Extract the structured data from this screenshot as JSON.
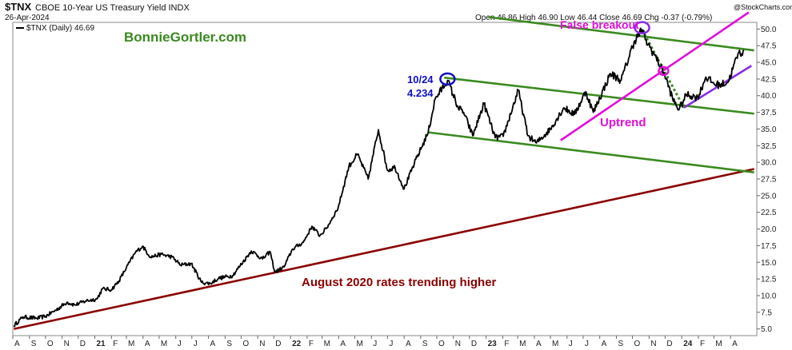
{
  "header": {
    "symbol": "$TNX",
    "name": "CBOE 10-Year US Treasury Yield INDX",
    "date": "26-Apr-2024",
    "legend": "$TNX (Daily) 46.69",
    "credit": "@StockCharts.com",
    "ohlc": "Open 46.86  High 46.90  Low 46.44  Close 46.69  Chg -0.37 (-0.79%)"
  },
  "annotations": {
    "brand": "BonnieGortler.com",
    "false_breakout": "False breakout",
    "peak_date": "10/24",
    "peak_value": "4.234",
    "uptrend": "Uptrend",
    "long_trend": "August 2020 rates trending higher"
  },
  "colors": {
    "price": "#000000",
    "green_channel": "#3a8a1f",
    "magenta": "#e010d8",
    "purple": "#8a2be2",
    "dark_red": "#8b0000",
    "blue": "#1010c0",
    "brand": "#3a8a1f"
  },
  "chart_data": {
    "type": "line",
    "title": "$TNX CBOE 10-Year US Treasury Yield INDX",
    "series": [
      {
        "name": "$TNX (Daily)",
        "points": [
          [
            "2020-08-03",
            5.5
          ],
          [
            "2020-08-20",
            6.8
          ],
          [
            "2020-09-15",
            6.6
          ],
          [
            "2020-10-01",
            6.9
          ],
          [
            "2020-10-20",
            7.8
          ],
          [
            "2020-11-10",
            9.0
          ],
          [
            "2020-11-25",
            8.6
          ],
          [
            "2020-12-15",
            9.2
          ],
          [
            "2021-01-05",
            9.5
          ],
          [
            "2021-01-15",
            11.0
          ],
          [
            "2021-02-01",
            10.9
          ],
          [
            "2021-02-15",
            12.2
          ],
          [
            "2021-03-01",
            14.2
          ],
          [
            "2021-03-18",
            16.5
          ],
          [
            "2021-03-31",
            17.4
          ],
          [
            "2021-04-15",
            15.8
          ],
          [
            "2021-05-05",
            16.2
          ],
          [
            "2021-05-25",
            15.8
          ],
          [
            "2021-06-10",
            14.6
          ],
          [
            "2021-06-30",
            14.8
          ],
          [
            "2021-07-19",
            12.0
          ],
          [
            "2021-08-04",
            11.8
          ],
          [
            "2021-08-20",
            12.6
          ],
          [
            "2021-09-15",
            13.0
          ],
          [
            "2021-10-20",
            16.7
          ],
          [
            "2021-11-10",
            15.5
          ],
          [
            "2021-11-24",
            16.6
          ],
          [
            "2021-12-03",
            13.5
          ],
          [
            "2021-12-20",
            14.3
          ],
          [
            "2022-01-05",
            17.0
          ],
          [
            "2022-01-25",
            18.0
          ],
          [
            "2022-02-10",
            20.4
          ],
          [
            "2022-02-25",
            19.0
          ],
          [
            "2022-03-10",
            20.2
          ],
          [
            "2022-03-31",
            23.2
          ],
          [
            "2022-04-20",
            29.4
          ],
          [
            "2022-05-06",
            31.2
          ],
          [
            "2022-05-26",
            27.5
          ],
          [
            "2022-06-14",
            34.9
          ],
          [
            "2022-07-01",
            28.8
          ],
          [
            "2022-07-15",
            29.3
          ],
          [
            "2022-08-01",
            26.0
          ],
          [
            "2022-08-20",
            29.8
          ],
          [
            "2022-09-15",
            34.5
          ],
          [
            "2022-09-28",
            39.5
          ],
          [
            "2022-10-21",
            42.3
          ],
          [
            "2022-11-10",
            38.2
          ],
          [
            "2022-11-20",
            37.5
          ],
          [
            "2022-12-07",
            34.0
          ],
          [
            "2022-12-28",
            38.8
          ],
          [
            "2023-01-18",
            33.7
          ],
          [
            "2023-02-02",
            33.9
          ],
          [
            "2023-03-02",
            40.8
          ],
          [
            "2023-03-20",
            34.0
          ],
          [
            "2023-04-05",
            32.9
          ],
          [
            "2023-05-01",
            35.0
          ],
          [
            "2023-05-26",
            38.2
          ],
          [
            "2023-06-15",
            37.2
          ],
          [
            "2023-07-06",
            40.6
          ],
          [
            "2023-07-20",
            37.5
          ],
          [
            "2023-08-21",
            43.3
          ],
          [
            "2023-09-10",
            42.3
          ],
          [
            "2023-10-04",
            48.1
          ],
          [
            "2023-10-19",
            49.9
          ],
          [
            "2023-10-25",
            48.4
          ],
          [
            "2023-11-10",
            46.3
          ],
          [
            "2023-11-30",
            43.2
          ],
          [
            "2023-12-15",
            39.5
          ],
          [
            "2023-12-27",
            37.9
          ],
          [
            "2024-01-10",
            40.2
          ],
          [
            "2024-01-31",
            39.7
          ],
          [
            "2024-02-15",
            42.8
          ],
          [
            "2024-03-01",
            41.8
          ],
          [
            "2024-03-12",
            41.6
          ],
          [
            "2024-03-28",
            42.1
          ],
          [
            "2024-04-15",
            46.3
          ],
          [
            "2024-04-26",
            46.69
          ]
        ]
      }
    ],
    "trendlines": [
      {
        "label": "August 2020 rates trending higher",
        "color": "#8b0000",
        "from": [
          "2020-08-03",
          5.0
        ],
        "to": [
          "2024-05-15",
          29.0
        ]
      },
      {
        "color": "#3a8a1f",
        "from": [
          "2023-01-05",
          51.8
        ],
        "to": [
          "2024-05-15",
          46.8
        ]
      },
      {
        "color": "#3a8a1f",
        "from": [
          "2022-10-15",
          42.7
        ],
        "to": [
          "2024-05-15",
          37.3
        ]
      },
      {
        "color": "#3a8a1f",
        "from": [
          "2022-09-15",
          34.5
        ],
        "to": [
          "2024-05-15",
          28.5
        ]
      },
      {
        "label": "Uptrend",
        "color": "#e010d8",
        "from": [
          "2023-05-20",
          33.3
        ],
        "to": [
          "2024-05-05",
          52.5
        ]
      },
      {
        "color": "#8a2be2",
        "from": [
          "2024-01-05",
          38.2
        ],
        "to": [
          "2024-05-10",
          44.5
        ]
      },
      {
        "color": "#3a8a1f",
        "dashed": true,
        "from": [
          "2023-10-19",
          49.9
        ],
        "to": [
          "2024-01-05",
          38.2
        ]
      }
    ],
    "circles": [
      {
        "color": "#1010c0",
        "at": [
          "2022-10-21",
          42.5
        ]
      },
      {
        "color": "#8a2be2",
        "at": [
          "2023-10-19",
          50.2
        ]
      },
      {
        "color": "#e010d8",
        "at": [
          "2023-11-28",
          43.7
        ]
      }
    ],
    "x_ticks": [
      "A",
      "S",
      "O",
      "N",
      "D",
      "21",
      "F",
      "M",
      "A",
      "M",
      "J",
      "J",
      "A",
      "S",
      "O",
      "N",
      "D",
      "22",
      "F",
      "M",
      "A",
      "M",
      "J",
      "J",
      "A",
      "S",
      "O",
      "N",
      "D",
      "23",
      "F",
      "M",
      "A",
      "M",
      "J",
      "J",
      "A",
      "S",
      "O",
      "N",
      "D",
      "24",
      "F",
      "M",
      "A"
    ],
    "y_ticks": [
      "5.0",
      "7.5",
      "10.0",
      "12.5",
      "15.0",
      "17.5",
      "20.0",
      "22.5",
      "25.0",
      "27.5",
      "30.0",
      "32.5",
      "35.0",
      "37.5",
      "40.0",
      "42.5",
      "45.0",
      "47.5",
      "50.0"
    ],
    "ylim": [
      4.0,
      51.0
    ],
    "xlim": [
      "2020-08-01",
      "2024-05-20"
    ],
    "grid": false,
    "legend": "top-left"
  }
}
